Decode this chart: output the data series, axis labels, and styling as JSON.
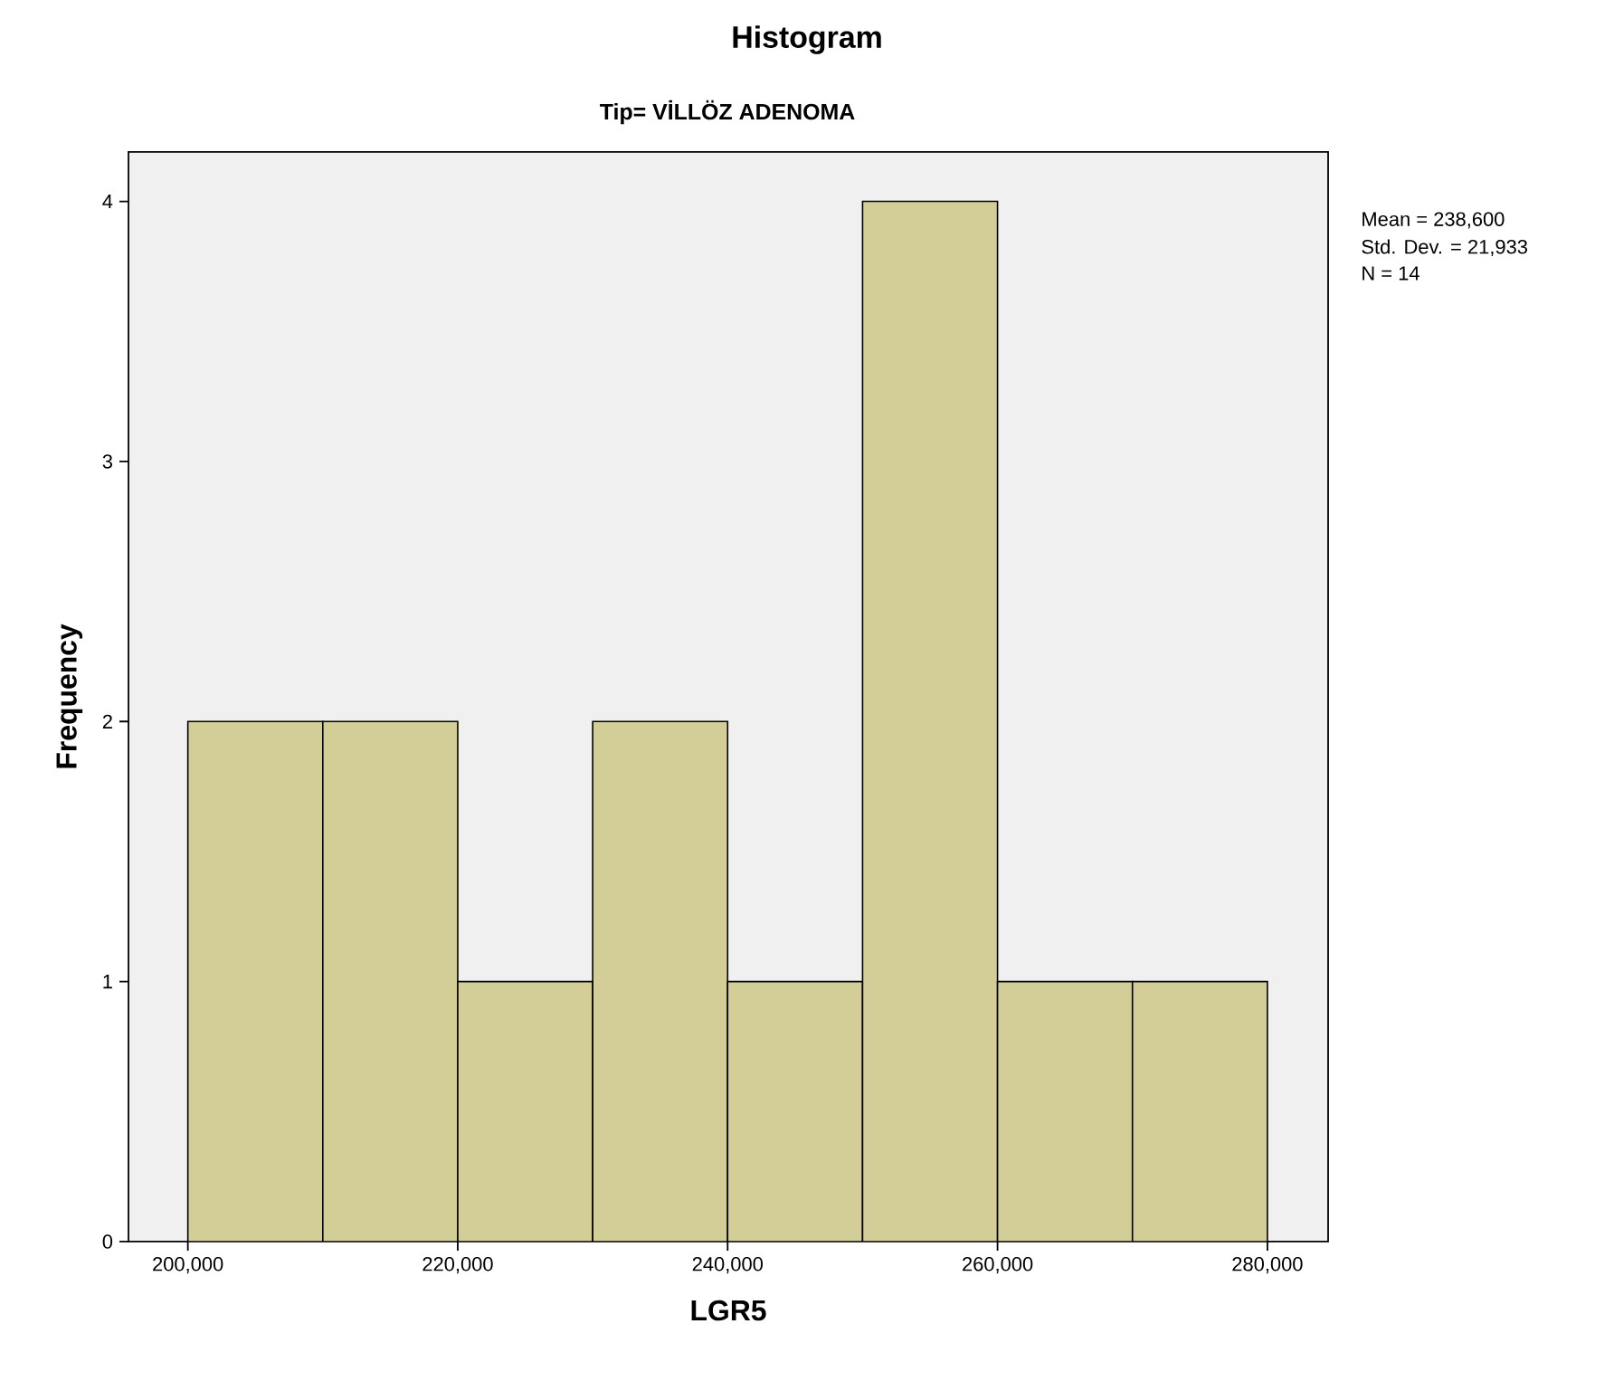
{
  "chart_data": {
    "type": "histogram",
    "title": "Histogram",
    "subtitle": "Tip= VİLLÖZ ADENOMA",
    "xlabel": "LGR5",
    "ylabel": "Frequency",
    "bins": [
      200000,
      210000,
      220000,
      230000,
      240000,
      250000,
      260000,
      270000,
      280000
    ],
    "values": [
      2,
      2,
      1,
      2,
      1,
      4,
      1,
      1
    ],
    "color": "#d3ce97",
    "xlim": [
      195600,
      284500
    ],
    "ylim": [
      0,
      4.19
    ],
    "xticks": [
      {
        "value": 200000,
        "label": "200,000"
      },
      {
        "value": 220000,
        "label": "220,000"
      },
      {
        "value": 240000,
        "label": "240,000"
      },
      {
        "value": 260000,
        "label": "260,000"
      },
      {
        "value": 280000,
        "label": "280,000"
      }
    ],
    "yticks": [
      0,
      1,
      2,
      3,
      4
    ],
    "annotations": [
      "Mean = 238,600",
      "Std. Dev. = 21,933",
      "N = 14"
    ]
  }
}
